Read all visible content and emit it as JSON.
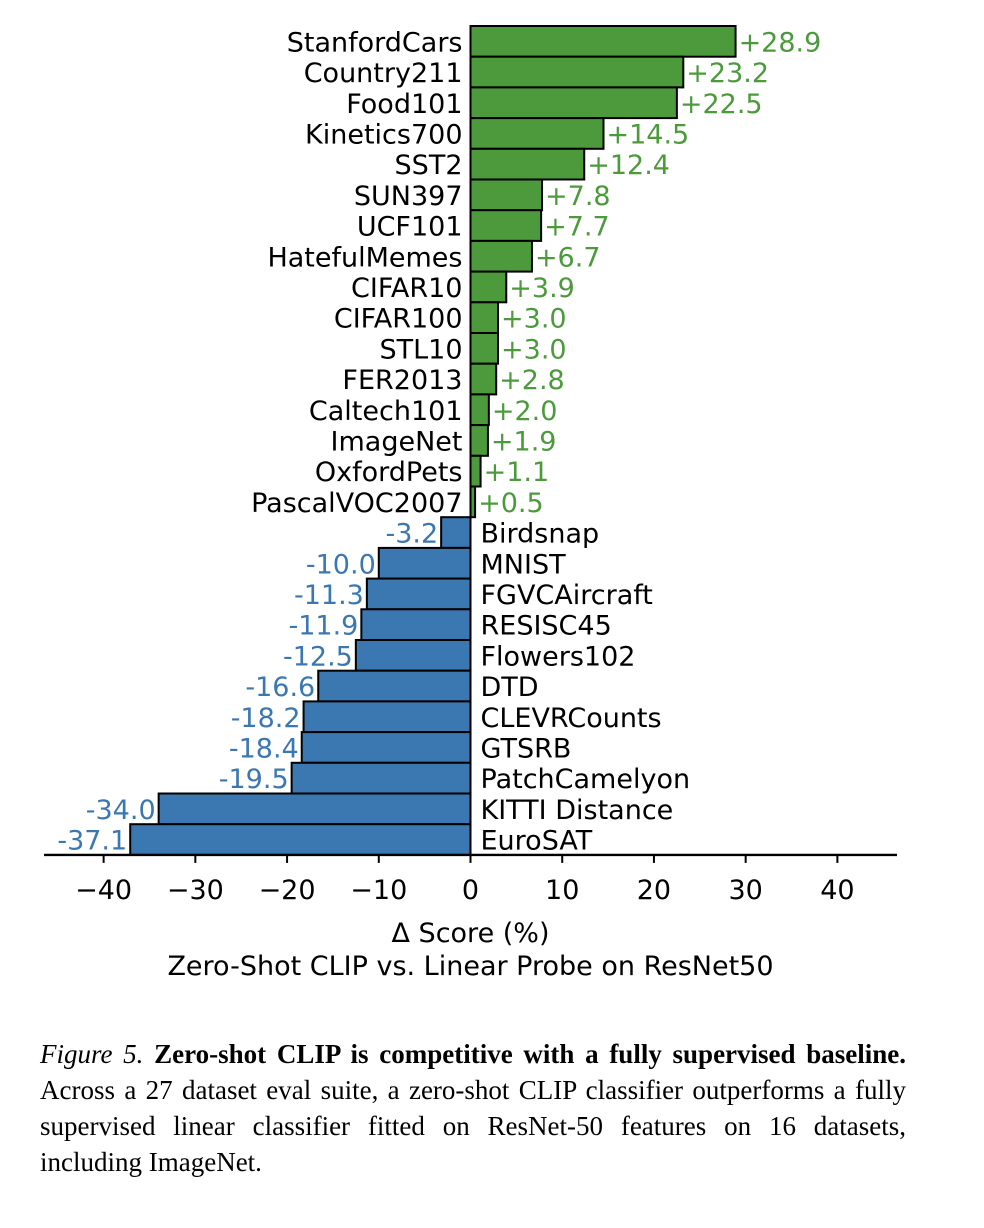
{
  "chart_data": {
    "type": "bar",
    "orientation": "horizontal",
    "categories": [
      "StanfordCars",
      "Country211",
      "Food101",
      "Kinetics700",
      "SST2",
      "SUN397",
      "UCF101",
      "HatefulMemes",
      "CIFAR10",
      "CIFAR100",
      "STL10",
      "FER2013",
      "Caltech101",
      "ImageNet",
      "OxfordPets",
      "PascalVOC2007",
      "Birdsnap",
      "MNIST",
      "FGVCAircraft",
      "RESISC45",
      "Flowers102",
      "DTD",
      "CLEVRCounts",
      "GTSRB",
      "PatchCamelyon",
      "KITTI Distance",
      "EuroSAT"
    ],
    "values": [
      28.9,
      23.2,
      22.5,
      14.5,
      12.4,
      7.8,
      7.7,
      6.7,
      3.9,
      3.0,
      3.0,
      2.8,
      2.0,
      1.9,
      1.1,
      0.5,
      -3.2,
      -10.0,
      -11.3,
      -11.9,
      -12.5,
      -16.6,
      -18.2,
      -18.4,
      -19.5,
      -34.0,
      -37.1
    ],
    "value_labels": [
      "+28.9",
      "+23.2",
      "+22.5",
      "+14.5",
      "+12.4",
      "+7.8",
      "+7.7",
      "+6.7",
      "+3.9",
      "+3.0",
      "+3.0",
      "+2.8",
      "+2.0",
      "+1.9",
      "+1.1",
      "+0.5",
      "-3.2",
      "-10.0",
      "-11.3",
      "-11.9",
      "-12.5",
      "-16.6",
      "-18.2",
      "-18.4",
      "-19.5",
      "-34.0",
      "-37.1"
    ],
    "xlim": [
      -46.5,
      46.5
    ],
    "xticks": [
      -40,
      -30,
      -20,
      -10,
      0,
      10,
      20,
      30,
      40
    ],
    "xtick_labels": [
      "−40",
      "−30",
      "−20",
      "−10",
      "0",
      "10",
      "20",
      "30",
      "40"
    ],
    "xlabel": "Δ Score (%)",
    "title": "Zero-Shot CLIP vs. Linear Probe on ResNet50",
    "colors": {
      "positive": "#4c9a3c",
      "negative": "#3b77b1",
      "edge": "#000000"
    },
    "grid": false
  },
  "caption": {
    "label": "Figure 5.",
    "bold": "Zero-shot CLIP is competitive with a fully supervised baseline.",
    "text": "Across a 27 dataset eval suite, a zero-shot CLIP classifier outperforms a fully supervised linear classifier fitted on ResNet-50 features on 16 datasets, including ImageNet."
  }
}
